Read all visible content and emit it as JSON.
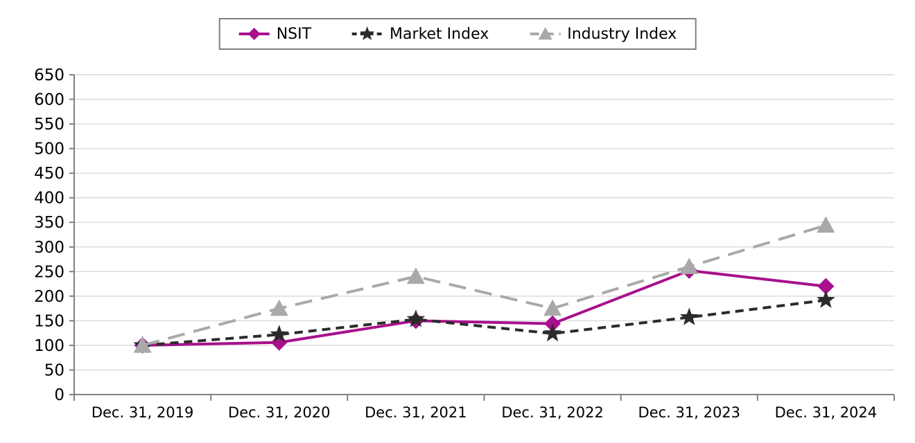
{
  "chart_data": {
    "type": "line",
    "title": "",
    "xlabel": "",
    "ylabel": "",
    "categories": [
      "Dec. 31, 2019",
      "Dec. 31, 2020",
      "Dec. 31, 2021",
      "Dec. 31, 2022",
      "Dec. 31, 2023",
      "Dec. 31, 2024"
    ],
    "series": [
      {
        "name": "NSIT",
        "color": "#A8108C",
        "marker": "diamond",
        "line_style": "solid",
        "values": [
          100,
          106,
          150,
          144,
          252,
          220
        ]
      },
      {
        "name": "Market Index",
        "color": "#2B2B2B",
        "marker": "star",
        "line_style": "dashed",
        "values": [
          100,
          122,
          153,
          124,
          157,
          192
        ]
      },
      {
        "name": "Industry Index",
        "color": "#A9A9A9",
        "marker": "triangle",
        "line_style": "long-dash",
        "values": [
          100,
          175,
          240,
          175,
          260,
          344
        ]
      }
    ],
    "ylim": [
      0,
      650
    ],
    "ytick_step": 50,
    "grid": "horizontal",
    "legend_position": "top-center"
  },
  "colors": {
    "background": "#FFFFFF",
    "gridline": "#D9D9D9",
    "axis_line": "#808080",
    "tick_label": "#000000",
    "legend_border": "#808080"
  }
}
